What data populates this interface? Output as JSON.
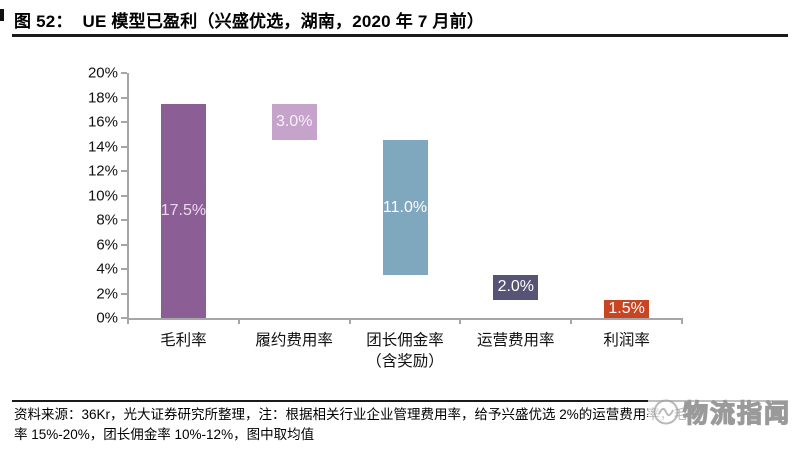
{
  "figure": {
    "title": "图 52：  UE 模型已盈利（兴盛优选，湖南，2020 年 7 月前）",
    "source_note_line1": "资料来源：36Kr，光大证券研究所整理，注：根据相关行业企业管理费用率，给予兴盛优选 2%的运营费用率，毛利",
    "source_note_line2": "率 15%-20%，团长佣金率 10%-12%，图中取均值",
    "watermark_text": "物流指闻"
  },
  "chart_data": {
    "type": "bar",
    "subtype": "waterfall",
    "title": "UE 模型已盈利（兴盛优选，湖南，2020 年 7 月前）",
    "xlabel": "",
    "ylabel": "",
    "ylim": [
      0,
      20
    ],
    "ytick_step": 2,
    "ytick_labels": [
      "0%",
      "2%",
      "4%",
      "6%",
      "8%",
      "10%",
      "12%",
      "14%",
      "16%",
      "18%",
      "20%"
    ],
    "grid": false,
    "legend": "none",
    "axis_color": "#a6a6a6",
    "categories": [
      {
        "name": "gross-margin",
        "label": "毛利率",
        "sublabel": ""
      },
      {
        "name": "fulfillment-expense-rate",
        "label": "履约费用率",
        "sublabel": ""
      },
      {
        "name": "leader-commission-rate",
        "label": "团长佣金率",
        "sublabel": "（含奖励）"
      },
      {
        "name": "operating-expense-rate",
        "label": "运营费用率",
        "sublabel": ""
      },
      {
        "name": "profit-margin",
        "label": "利润率",
        "sublabel": ""
      }
    ],
    "values": [
      17.5,
      3.0,
      11.0,
      2.0,
      1.5
    ],
    "segments": [
      {
        "name": "gross-margin",
        "start": 0,
        "end": 17.5,
        "value_label": "17.5%",
        "color": "#8B5E96",
        "label_color": "#EDD8EA"
      },
      {
        "name": "fulfillment-expense-rate",
        "start": 14.5,
        "end": 17.5,
        "value_label": "3.0%",
        "color": "#C5A3CB",
        "label_color": "#F8F2F8"
      },
      {
        "name": "leader-commission-rate",
        "start": 3.5,
        "end": 14.5,
        "value_label": "11.0%",
        "color": "#7FA7BE",
        "label_color": "#FFFFFF"
      },
      {
        "name": "operating-expense-rate",
        "start": 1.5,
        "end": 3.5,
        "value_label": "2.0%",
        "color": "#565377",
        "label_color": "#FFFFFF"
      },
      {
        "name": "profit-margin",
        "start": 0,
        "end": 1.5,
        "value_label": "1.5%",
        "color": "#C74523",
        "label_color": "#FFFFFF"
      }
    ]
  }
}
